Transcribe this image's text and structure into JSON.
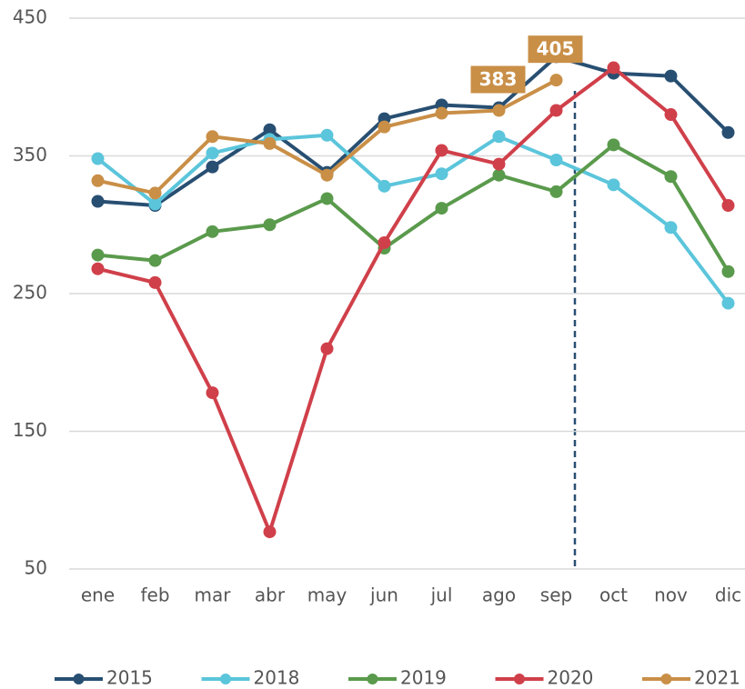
{
  "chart_data": {
    "type": "line",
    "categories": [
      "ene",
      "feb",
      "mar",
      "abr",
      "may",
      "jun",
      "jul",
      "ago",
      "sep",
      "oct",
      "nov",
      "dic"
    ],
    "ylim": [
      50,
      450
    ],
    "yticks": [
      50,
      150,
      250,
      350,
      450
    ],
    "grid": true,
    "legend": "bottom",
    "series": [
      {
        "name": "2015",
        "color": "#284f72",
        "values": [
          317,
          314,
          342,
          369,
          338,
          377,
          387,
          385,
          422,
          410,
          408,
          367
        ]
      },
      {
        "name": "2018",
        "color": "#5bc5db",
        "values": [
          348,
          315,
          352,
          362,
          365,
          328,
          337,
          364,
          347,
          329,
          298,
          243
        ]
      },
      {
        "name": "2019",
        "color": "#5a9a4c",
        "values": [
          278,
          274,
          295,
          300,
          319,
          283,
          312,
          336,
          324,
          358,
          335,
          266
        ]
      },
      {
        "name": "2020",
        "color": "#d0404a",
        "values": [
          268,
          258,
          178,
          77,
          210,
          287,
          354,
          344,
          383,
          414,
          380,
          314
        ]
      },
      {
        "name": "2021",
        "color": "#c98f47",
        "values": [
          332,
          323,
          364,
          359,
          336,
          371,
          381,
          383,
          405,
          null,
          null,
          null
        ],
        "value_labels": [
          null,
          null,
          null,
          null,
          null,
          null,
          null,
          "383",
          "405",
          null,
          null,
          null
        ]
      }
    ]
  }
}
